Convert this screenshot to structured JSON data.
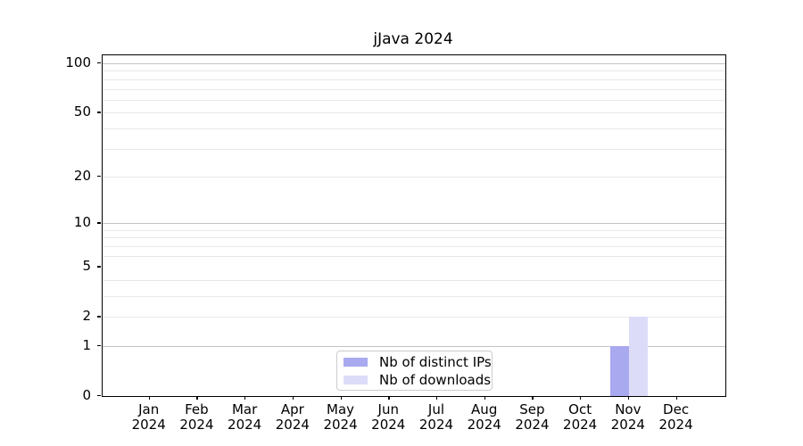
{
  "chart_data": {
    "type": "bar",
    "title": "jJava 2024",
    "year": "2024",
    "months": [
      "Jan",
      "Feb",
      "Mar",
      "Apr",
      "May",
      "Jun",
      "Jul",
      "Aug",
      "Sep",
      "Oct",
      "Nov",
      "Dec"
    ],
    "series": [
      {
        "name": "Nb of distinct IPs",
        "color": "#a9a9f0",
        "values": [
          0,
          0,
          0,
          0,
          0,
          0,
          0,
          0,
          0,
          0,
          1,
          0
        ]
      },
      {
        "name": "Nb of downloads",
        "color": "#dcdcf8",
        "values": [
          0,
          0,
          0,
          0,
          0,
          0,
          0,
          0,
          0,
          0,
          2,
          0
        ]
      }
    ],
    "y_scale": "log10(value+1)",
    "ylim": [
      0,
      112
    ],
    "y_labeled_ticks": [
      0,
      1,
      2,
      5,
      10,
      20,
      50,
      100
    ],
    "y_major_gridlines": [
      1,
      10,
      100
    ],
    "y_minor_gridlines": [
      2,
      3,
      4,
      6,
      7,
      8,
      9,
      20,
      30,
      40,
      50,
      60,
      70,
      80,
      90
    ],
    "grid": true,
    "legend_position": "lower center"
  },
  "colors": {
    "background": "#ffffff",
    "axis": "#000000",
    "grid_major": "#c3c3c3",
    "grid_minor": "#e8e8e8",
    "legend_border": "#cccccc",
    "text": "#000000"
  }
}
